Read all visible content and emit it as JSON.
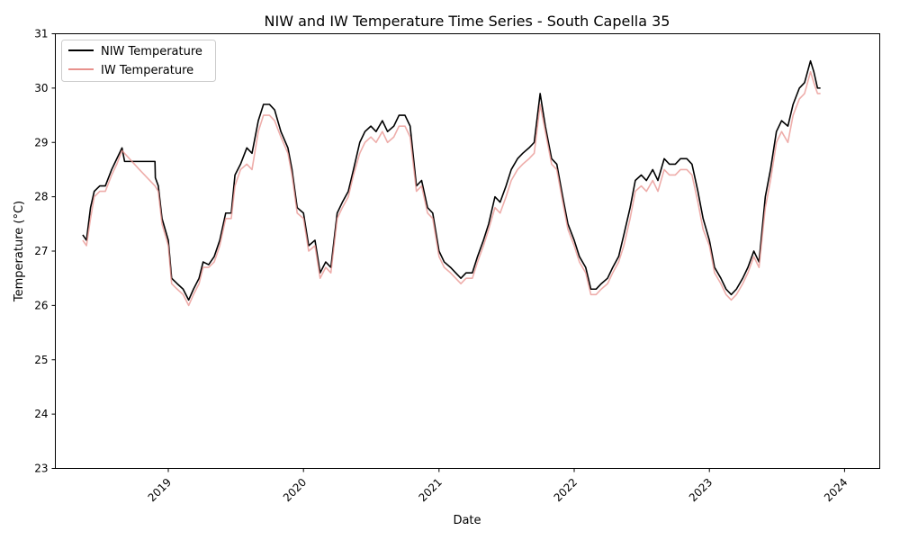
{
  "chart_data": {
    "type": "line",
    "title": "NIW and IW Temperature Time Series - South Capella 35",
    "xlabel": "Date",
    "ylabel": "Temperature (°C)",
    "xlim": [
      "2018-03-02",
      "2024-04-05"
    ],
    "ylim": [
      23,
      31
    ],
    "yticks": [
      23,
      24,
      25,
      26,
      27,
      28,
      29,
      30,
      31
    ],
    "xticks": [
      {
        "date": "2019-01-01",
        "label": "2019"
      },
      {
        "date": "2020-01-01",
        "label": "2020"
      },
      {
        "date": "2021-01-01",
        "label": "2021"
      },
      {
        "date": "2022-01-01",
        "label": "2022"
      },
      {
        "date": "2023-01-01",
        "label": "2023"
      },
      {
        "date": "2024-01-01",
        "label": "2024"
      }
    ],
    "grid": false,
    "legend": "top-left",
    "series": [
      {
        "name": "NIW Temperature",
        "color": "#000000",
        "points": [
          [
            "2018-05-15",
            27.3
          ],
          [
            "2018-05-25",
            27.2
          ],
          [
            "2018-06-05",
            27.8
          ],
          [
            "2018-06-15",
            28.1
          ],
          [
            "2018-06-30",
            28.2
          ],
          [
            "2018-07-15",
            28.2
          ],
          [
            "2018-08-01",
            28.5
          ],
          [
            "2018-08-15",
            28.7
          ],
          [
            "2018-08-29",
            28.9
          ],
          [
            "2018-09-05",
            28.65
          ],
          [
            "2018-10-15",
            28.65
          ],
          [
            "2018-11-26",
            28.65
          ],
          [
            "2018-11-27",
            28.35
          ],
          [
            "2018-12-05",
            28.2
          ],
          [
            "2018-12-15",
            27.6
          ],
          [
            "2019-01-01",
            27.2
          ],
          [
            "2019-01-10",
            26.5
          ],
          [
            "2019-01-25",
            26.4
          ],
          [
            "2019-02-10",
            26.3
          ],
          [
            "2019-02-25",
            26.1
          ],
          [
            "2019-03-10",
            26.3
          ],
          [
            "2019-03-25",
            26.5
          ],
          [
            "2019-04-05",
            26.8
          ],
          [
            "2019-04-20",
            26.75
          ],
          [
            "2019-05-05",
            26.9
          ],
          [
            "2019-05-20",
            27.2
          ],
          [
            "2019-06-05",
            27.7
          ],
          [
            "2019-06-20",
            27.7
          ],
          [
            "2019-06-30",
            28.4
          ],
          [
            "2019-07-15",
            28.6
          ],
          [
            "2019-08-01",
            28.9
          ],
          [
            "2019-08-15",
            28.8
          ],
          [
            "2019-09-01",
            29.4
          ],
          [
            "2019-09-15",
            29.7
          ],
          [
            "2019-10-01",
            29.7
          ],
          [
            "2019-10-15",
            29.6
          ],
          [
            "2019-11-01",
            29.2
          ],
          [
            "2019-11-20",
            28.9
          ],
          [
            "2019-12-01",
            28.5
          ],
          [
            "2019-12-15",
            27.8
          ],
          [
            "2020-01-01",
            27.7
          ],
          [
            "2020-01-15",
            27.1
          ],
          [
            "2020-02-01",
            27.2
          ],
          [
            "2020-02-15",
            26.6
          ],
          [
            "2020-03-01",
            26.8
          ],
          [
            "2020-03-15",
            26.7
          ],
          [
            "2020-04-01",
            27.7
          ],
          [
            "2020-04-15",
            27.9
          ],
          [
            "2020-05-01",
            28.1
          ],
          [
            "2020-05-15",
            28.5
          ],
          [
            "2020-06-01",
            29.0
          ],
          [
            "2020-06-15",
            29.2
          ],
          [
            "2020-07-01",
            29.3
          ],
          [
            "2020-07-15",
            29.2
          ],
          [
            "2020-08-01",
            29.4
          ],
          [
            "2020-08-15",
            29.2
          ],
          [
            "2020-09-01",
            29.3
          ],
          [
            "2020-09-15",
            29.5
          ],
          [
            "2020-10-01",
            29.5
          ],
          [
            "2020-10-15",
            29.3
          ],
          [
            "2020-11-01",
            28.2
          ],
          [
            "2020-11-15",
            28.3
          ],
          [
            "2020-12-01",
            27.8
          ],
          [
            "2020-12-15",
            27.7
          ],
          [
            "2021-01-01",
            27.0
          ],
          [
            "2021-01-15",
            26.8
          ],
          [
            "2021-02-01",
            26.7
          ],
          [
            "2021-02-15",
            26.6
          ],
          [
            "2021-03-01",
            26.5
          ],
          [
            "2021-03-15",
            26.6
          ],
          [
            "2021-04-01",
            26.6
          ],
          [
            "2021-04-15",
            26.9
          ],
          [
            "2021-05-01",
            27.2
          ],
          [
            "2021-05-15",
            27.5
          ],
          [
            "2021-06-01",
            28.0
          ],
          [
            "2021-06-15",
            27.9
          ],
          [
            "2021-07-01",
            28.2
          ],
          [
            "2021-07-15",
            28.5
          ],
          [
            "2021-08-01",
            28.7
          ],
          [
            "2021-08-15",
            28.8
          ],
          [
            "2021-09-01",
            28.9
          ],
          [
            "2021-09-15",
            29.0
          ],
          [
            "2021-10-01",
            29.9
          ],
          [
            "2021-10-15",
            29.3
          ],
          [
            "2021-11-01",
            28.7
          ],
          [
            "2021-11-15",
            28.6
          ],
          [
            "2021-12-01",
            28.0
          ],
          [
            "2021-12-15",
            27.5
          ],
          [
            "2022-01-01",
            27.2
          ],
          [
            "2022-01-15",
            26.9
          ],
          [
            "2022-02-01",
            26.7
          ],
          [
            "2022-02-15",
            26.3
          ],
          [
            "2022-03-01",
            26.3
          ],
          [
            "2022-03-15",
            26.4
          ],
          [
            "2022-04-01",
            26.5
          ],
          [
            "2022-04-15",
            26.7
          ],
          [
            "2022-05-01",
            26.9
          ],
          [
            "2022-05-15",
            27.3
          ],
          [
            "2022-06-01",
            27.8
          ],
          [
            "2022-06-15",
            28.3
          ],
          [
            "2022-07-01",
            28.4
          ],
          [
            "2022-07-15",
            28.3
          ],
          [
            "2022-08-01",
            28.5
          ],
          [
            "2022-08-15",
            28.3
          ],
          [
            "2022-09-01",
            28.7
          ],
          [
            "2022-09-15",
            28.6
          ],
          [
            "2022-10-01",
            28.6
          ],
          [
            "2022-10-15",
            28.7
          ],
          [
            "2022-11-01",
            28.7
          ],
          [
            "2022-11-15",
            28.6
          ],
          [
            "2022-12-01",
            28.1
          ],
          [
            "2022-12-15",
            27.6
          ],
          [
            "2023-01-01",
            27.2
          ],
          [
            "2023-01-15",
            26.7
          ],
          [
            "2023-02-01",
            26.5
          ],
          [
            "2023-02-15",
            26.3
          ],
          [
            "2023-03-01",
            26.2
          ],
          [
            "2023-03-15",
            26.3
          ],
          [
            "2023-04-01",
            26.5
          ],
          [
            "2023-04-15",
            26.7
          ],
          [
            "2023-05-01",
            27.0
          ],
          [
            "2023-05-15",
            26.8
          ],
          [
            "2023-06-01",
            28.0
          ],
          [
            "2023-06-15",
            28.5
          ],
          [
            "2023-07-01",
            29.2
          ],
          [
            "2023-07-15",
            29.4
          ],
          [
            "2023-08-01",
            29.3
          ],
          [
            "2023-08-15",
            29.7
          ],
          [
            "2023-09-01",
            30.0
          ],
          [
            "2023-09-15",
            30.1
          ],
          [
            "2023-10-01",
            30.5
          ],
          [
            "2023-10-10",
            30.3
          ],
          [
            "2023-10-20",
            30.0
          ],
          [
            "2023-10-28",
            30.0
          ]
        ]
      },
      {
        "name": "IW Temperature",
        "color": "#e8928d",
        "points": [
          [
            "2018-05-15",
            27.2
          ],
          [
            "2018-05-25",
            27.1
          ],
          [
            "2018-06-05",
            27.6
          ],
          [
            "2018-06-15",
            28.0
          ],
          [
            "2018-06-30",
            28.1
          ],
          [
            "2018-07-15",
            28.1
          ],
          [
            "2018-08-01",
            28.4
          ],
          [
            "2018-08-15",
            28.6
          ],
          [
            "2018-08-29",
            28.85
          ],
          [
            "2018-10-15",
            28.5
          ],
          [
            "2018-11-26",
            28.2
          ],
          [
            "2018-12-05",
            28.1
          ],
          [
            "2018-12-15",
            27.5
          ],
          [
            "2019-01-01",
            27.1
          ],
          [
            "2019-01-10",
            26.4
          ],
          [
            "2019-01-25",
            26.3
          ],
          [
            "2019-02-10",
            26.2
          ],
          [
            "2019-02-25",
            26.0
          ],
          [
            "2019-03-10",
            26.2
          ],
          [
            "2019-03-25",
            26.4
          ],
          [
            "2019-04-05",
            26.7
          ],
          [
            "2019-04-20",
            26.7
          ],
          [
            "2019-05-05",
            26.8
          ],
          [
            "2019-05-20",
            27.1
          ],
          [
            "2019-06-05",
            27.6
          ],
          [
            "2019-06-20",
            27.6
          ],
          [
            "2019-06-30",
            28.2
          ],
          [
            "2019-07-15",
            28.5
          ],
          [
            "2019-08-01",
            28.6
          ],
          [
            "2019-08-15",
            28.5
          ],
          [
            "2019-09-01",
            29.2
          ],
          [
            "2019-09-15",
            29.5
          ],
          [
            "2019-10-01",
            29.5
          ],
          [
            "2019-10-15",
            29.4
          ],
          [
            "2019-11-01",
            29.1
          ],
          [
            "2019-11-20",
            28.8
          ],
          [
            "2019-12-01",
            28.4
          ],
          [
            "2019-12-15",
            27.7
          ],
          [
            "2020-01-01",
            27.6
          ],
          [
            "2020-01-15",
            27.0
          ],
          [
            "2020-02-01",
            27.1
          ],
          [
            "2020-02-15",
            26.5
          ],
          [
            "2020-03-01",
            26.7
          ],
          [
            "2020-03-15",
            26.6
          ],
          [
            "2020-04-01",
            27.6
          ],
          [
            "2020-04-15",
            27.8
          ],
          [
            "2020-05-01",
            28.0
          ],
          [
            "2020-05-15",
            28.4
          ],
          [
            "2020-06-01",
            28.8
          ],
          [
            "2020-06-15",
            29.0
          ],
          [
            "2020-07-01",
            29.1
          ],
          [
            "2020-07-15",
            29.0
          ],
          [
            "2020-08-01",
            29.2
          ],
          [
            "2020-08-15",
            29.0
          ],
          [
            "2020-09-01",
            29.1
          ],
          [
            "2020-09-15",
            29.3
          ],
          [
            "2020-10-01",
            29.3
          ],
          [
            "2020-10-15",
            29.1
          ],
          [
            "2020-11-01",
            28.1
          ],
          [
            "2020-11-15",
            28.2
          ],
          [
            "2020-12-01",
            27.7
          ],
          [
            "2020-12-15",
            27.6
          ],
          [
            "2021-01-01",
            26.9
          ],
          [
            "2021-01-15",
            26.7
          ],
          [
            "2021-02-01",
            26.6
          ],
          [
            "2021-02-15",
            26.5
          ],
          [
            "2021-03-01",
            26.4
          ],
          [
            "2021-03-15",
            26.5
          ],
          [
            "2021-04-01",
            26.5
          ],
          [
            "2021-04-15",
            26.8
          ],
          [
            "2021-05-01",
            27.1
          ],
          [
            "2021-05-15",
            27.4
          ],
          [
            "2021-06-01",
            27.8
          ],
          [
            "2021-06-15",
            27.7
          ],
          [
            "2021-07-01",
            28.0
          ],
          [
            "2021-07-15",
            28.3
          ],
          [
            "2021-08-01",
            28.5
          ],
          [
            "2021-08-15",
            28.6
          ],
          [
            "2021-09-01",
            28.7
          ],
          [
            "2021-09-15",
            28.8
          ],
          [
            "2021-10-01",
            29.7
          ],
          [
            "2021-10-15",
            29.2
          ],
          [
            "2021-11-01",
            28.6
          ],
          [
            "2021-11-15",
            28.5
          ],
          [
            "2021-12-01",
            27.9
          ],
          [
            "2021-12-15",
            27.4
          ],
          [
            "2022-01-01",
            27.1
          ],
          [
            "2022-01-15",
            26.8
          ],
          [
            "2022-02-01",
            26.6
          ],
          [
            "2022-02-15",
            26.2
          ],
          [
            "2022-03-01",
            26.2
          ],
          [
            "2022-03-15",
            26.3
          ],
          [
            "2022-04-01",
            26.4
          ],
          [
            "2022-04-15",
            26.6
          ],
          [
            "2022-05-01",
            26.8
          ],
          [
            "2022-05-15",
            27.1
          ],
          [
            "2022-06-01",
            27.6
          ],
          [
            "2022-06-15",
            28.1
          ],
          [
            "2022-07-01",
            28.2
          ],
          [
            "2022-07-15",
            28.1
          ],
          [
            "2022-08-01",
            28.3
          ],
          [
            "2022-08-15",
            28.1
          ],
          [
            "2022-09-01",
            28.5
          ],
          [
            "2022-09-15",
            28.4
          ],
          [
            "2022-10-01",
            28.4
          ],
          [
            "2022-10-15",
            28.5
          ],
          [
            "2022-11-01",
            28.5
          ],
          [
            "2022-11-15",
            28.4
          ],
          [
            "2022-12-01",
            27.9
          ],
          [
            "2022-12-15",
            27.4
          ],
          [
            "2023-01-01",
            27.1
          ],
          [
            "2023-01-15",
            26.6
          ],
          [
            "2023-02-01",
            26.4
          ],
          [
            "2023-02-15",
            26.2
          ],
          [
            "2023-03-01",
            26.1
          ],
          [
            "2023-03-15",
            26.2
          ],
          [
            "2023-04-01",
            26.4
          ],
          [
            "2023-04-15",
            26.6
          ],
          [
            "2023-05-01",
            26.9
          ],
          [
            "2023-05-15",
            26.7
          ],
          [
            "2023-06-01",
            27.8
          ],
          [
            "2023-06-15",
            28.3
          ],
          [
            "2023-07-01",
            29.0
          ],
          [
            "2023-07-15",
            29.2
          ],
          [
            "2023-08-01",
            29.0
          ],
          [
            "2023-08-15",
            29.5
          ],
          [
            "2023-09-01",
            29.8
          ],
          [
            "2023-09-15",
            29.9
          ],
          [
            "2023-10-01",
            30.3
          ],
          [
            "2023-10-10",
            30.1
          ],
          [
            "2023-10-20",
            29.9
          ],
          [
            "2023-10-28",
            29.9
          ]
        ]
      }
    ]
  }
}
